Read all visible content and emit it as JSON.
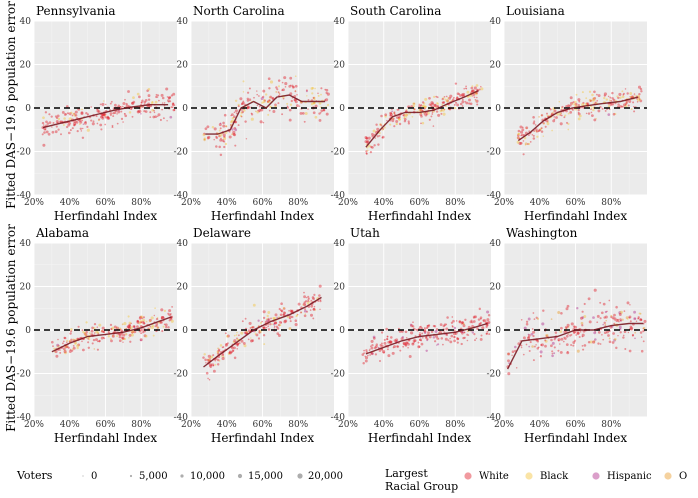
{
  "colors": {
    "White": "#e0202a",
    "Black": "#f5c43a",
    "Hispanic": "#b02b8a",
    "Other": "#e89b2b",
    "trend": "#7a1b24",
    "size_legend": "#777777"
  },
  "y_axis_title": "Fitted DAS−19.6 population error",
  "chart_data": [
    {
      "type": "scatter",
      "title": "Pennsylvania",
      "xlabel": "Herfindahl Index",
      "ylabel": "Fitted DAS−19.6 population error",
      "xlim": [
        0.2,
        1.0
      ],
      "ylim": [
        -40,
        40
      ],
      "xticks": [
        "20%",
        "40%",
        "60%",
        "80%"
      ],
      "yticks": [
        "-40",
        "-20",
        "0",
        "20",
        "40"
      ],
      "trend": {
        "x": [
          0.25,
          0.35,
          0.45,
          0.55,
          0.65,
          0.75,
          0.85,
          0.95
        ],
        "y": [
          -9,
          -7,
          -5,
          -3,
          -1,
          0.5,
          1.5,
          1.5
        ]
      },
      "spread": 3,
      "x_range": [
        0.24,
        0.99
      ],
      "composition": {
        "White": 0.86,
        "Black": 0.12,
        "Hispanic": 0.02,
        "Other": 0
      }
    },
    {
      "type": "scatter",
      "title": "North Carolina",
      "xlabel": "Herfindahl Index",
      "ylabel": "Fitted DAS−19.6 population error",
      "xlim": [
        0.2,
        1.0
      ],
      "ylim": [
        -40,
        40
      ],
      "xticks": [
        "20%",
        "40%",
        "60%",
        "80%"
      ],
      "yticks": [
        "-40",
        "-20",
        "0",
        "20",
        "40"
      ],
      "trend": {
        "x": [
          0.28,
          0.35,
          0.42,
          0.48,
          0.55,
          0.62,
          0.68,
          0.75,
          0.82,
          0.88,
          0.95
        ],
        "y": [
          -12,
          -12,
          -10,
          0,
          3,
          0,
          5,
          6,
          3,
          3,
          3
        ]
      },
      "spread": 4,
      "x_range": [
        0.27,
        0.97
      ],
      "composition": {
        "White": 0.68,
        "Black": 0.28,
        "Hispanic": 0.02,
        "Other": 0.02
      }
    },
    {
      "type": "scatter",
      "title": "South Carolina",
      "xlabel": "Herfindahl Index",
      "ylabel": "Fitted DAS−19.6 population error",
      "xlim": [
        0.2,
        1.0
      ],
      "ylim": [
        -40,
        40
      ],
      "xticks": [
        "20%",
        "40%",
        "60%",
        "80%"
      ],
      "yticks": [
        "-40",
        "-20",
        "0",
        "20",
        "40"
      ],
      "trend": {
        "x": [
          0.3,
          0.38,
          0.45,
          0.52,
          0.6,
          0.68,
          0.76,
          0.85,
          0.93
        ],
        "y": [
          -18,
          -10,
          -4,
          -2,
          -2,
          -1,
          2,
          5,
          8
        ]
      },
      "spread": 2.5,
      "x_range": [
        0.3,
        0.95
      ],
      "composition": {
        "White": 0.7,
        "Black": 0.28,
        "Hispanic": 0.01,
        "Other": 0.01
      }
    },
    {
      "type": "scatter",
      "title": "Louisiana",
      "xlabel": "Herfindahl Index",
      "ylabel": "Fitted DAS−19.6 population error",
      "xlim": [
        0.2,
        1.0
      ],
      "ylim": [
        -40,
        40
      ],
      "xticks": [
        "20%",
        "40%",
        "60%",
        "80%"
      ],
      "yticks": [
        "-40",
        "-20",
        "0",
        "20",
        "40"
      ],
      "trend": {
        "x": [
          0.28,
          0.35,
          0.42,
          0.5,
          0.58,
          0.66,
          0.75,
          0.85,
          0.95
        ],
        "y": [
          -15,
          -11,
          -6,
          -2,
          0,
          1,
          2,
          3,
          5
        ]
      },
      "spread": 3,
      "x_range": [
        0.27,
        0.97
      ],
      "composition": {
        "White": 0.66,
        "Black": 0.32,
        "Hispanic": 0.01,
        "Other": 0.01
      }
    },
    {
      "type": "scatter",
      "title": "Alabama",
      "xlabel": "Herfindahl Index",
      "ylabel": "Fitted DAS−19.6 population error",
      "xlim": [
        0.2,
        1.0
      ],
      "ylim": [
        -40,
        40
      ],
      "xticks": [
        "20%",
        "40%",
        "60%",
        "80%"
      ],
      "yticks": [
        "-40",
        "-20",
        "0",
        "20",
        "40"
      ],
      "trend": {
        "x": [
          0.3,
          0.4,
          0.5,
          0.6,
          0.7,
          0.8,
          0.9,
          0.97
        ],
        "y": [
          -10,
          -6,
          -3,
          -2,
          -1,
          1,
          4,
          6
        ]
      },
      "spread": 2.5,
      "x_range": [
        0.3,
        0.98
      ],
      "composition": {
        "White": 0.7,
        "Black": 0.28,
        "Hispanic": 0.01,
        "Other": 0.01
      }
    },
    {
      "type": "scatter",
      "title": "Delaware",
      "xlabel": "Herfindahl Index",
      "ylabel": "Fitted DAS−19.6 population error",
      "xlim": [
        0.2,
        1.0
      ],
      "ylim": [
        -40,
        40
      ],
      "xticks": [
        "20%",
        "40%",
        "60%",
        "80%"
      ],
      "yticks": [
        "-40",
        "-20",
        "0",
        "20",
        "40"
      ],
      "trend": {
        "x": [
          0.27,
          0.35,
          0.45,
          0.55,
          0.65,
          0.75,
          0.85,
          0.93
        ],
        "y": [
          -17,
          -12,
          -6,
          0,
          4,
          7,
          11,
          15
        ]
      },
      "spread": 3,
      "x_range": [
        0.27,
        0.93
      ],
      "composition": {
        "White": 0.72,
        "Black": 0.24,
        "Hispanic": 0.03,
        "Other": 0.01
      }
    },
    {
      "type": "scatter",
      "title": "Utah",
      "xlabel": "Herfindahl Index",
      "ylabel": "Fitted DAS−19.6 population error",
      "xlim": [
        0.2,
        1.0
      ],
      "ylim": [
        -40,
        40
      ],
      "xticks": [
        "20%",
        "40%",
        "60%",
        "80%"
      ],
      "yticks": [
        "-40",
        "-20",
        "0",
        "20",
        "40"
      ],
      "trend": {
        "x": [
          0.3,
          0.4,
          0.5,
          0.6,
          0.7,
          0.8,
          0.9,
          0.98
        ],
        "y": [
          -11,
          -8,
          -5,
          -3,
          -2,
          -1,
          1,
          3
        ]
      },
      "spread": 3,
      "x_range": [
        0.28,
        0.99
      ],
      "composition": {
        "White": 0.9,
        "Black": 0,
        "Hispanic": 0.09,
        "Other": 0.01
      }
    },
    {
      "type": "scatter",
      "title": "Washington",
      "xlabel": "Herfindahl Index",
      "ylabel": "Fitted DAS−19.6 population error",
      "xlim": [
        0.2,
        1.0
      ],
      "ylim": [
        -40,
        40
      ],
      "xticks": [
        "20%",
        "40%",
        "60%",
        "80%"
      ],
      "yticks": [
        "-40",
        "-20",
        "0",
        "20",
        "40"
      ],
      "trend": {
        "x": [
          0.22,
          0.3,
          0.4,
          0.5,
          0.6,
          0.7,
          0.8,
          0.9,
          0.98
        ],
        "y": [
          -18,
          -5,
          -4,
          -3,
          0,
          0,
          2,
          3,
          3
        ]
      },
      "spread": 5,
      "x_range": [
        0.22,
        0.99
      ],
      "composition": {
        "White": 0.78,
        "Black": 0.03,
        "Hispanic": 0.1,
        "Other": 0.09
      }
    }
  ],
  "legend": {
    "voters_title": "Voters",
    "voters_values": [
      0,
      5000,
      10000,
      15000,
      20000
    ],
    "voters_labels": [
      "0",
      "5,000",
      "10,000",
      "15,000",
      "20,000"
    ],
    "group_title_line1": "Largest",
    "group_title_line2": "Racial Group",
    "groups": [
      "White",
      "Black",
      "Hispanic",
      "Other"
    ],
    "groups_visible": [
      "White",
      "Black",
      "Hispanic",
      "O"
    ]
  }
}
